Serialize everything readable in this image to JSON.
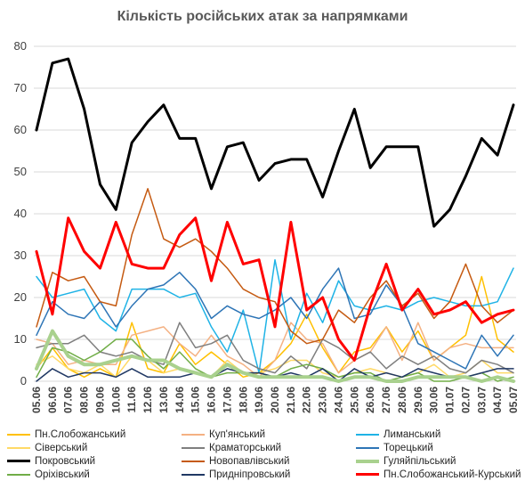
{
  "chart_data": {
    "type": "line",
    "title": "Кількість російських атак за напрямками",
    "xlabel": "",
    "ylabel": "",
    "ylim": [
      0,
      80
    ],
    "yticks": [
      0,
      10,
      20,
      30,
      40,
      50,
      60,
      70,
      80
    ],
    "grid": "horizontal",
    "legend_position": "bottom",
    "categories": [
      "05.06",
      "06.06",
      "07.06",
      "08.06",
      "09.06",
      "10.06",
      "11.06",
      "12.06",
      "13.06",
      "14.06",
      "15.06",
      "16.06",
      "17.06",
      "18.06",
      "19.06",
      "20.06",
      "21.06",
      "22.06",
      "23.06",
      "24.06",
      "25.06",
      "26.06",
      "27.06",
      "28.06",
      "29.06",
      "30.06",
      "01.07",
      "02.07",
      "03.07",
      "04.07",
      "05.07"
    ],
    "series": [
      {
        "name": "Пн.Слобожанський",
        "color": "#ffc000",
        "width": 1.5,
        "values": [
          3,
          8,
          3,
          1,
          3,
          1,
          14,
          3,
          2,
          9,
          4,
          7,
          4,
          1,
          2,
          5,
          9,
          16,
          8,
          2,
          7,
          8,
          13,
          7,
          12,
          5,
          8,
          11,
          25,
          10,
          7
        ]
      },
      {
        "name": "Куп'янський",
        "color": "#f4b183",
        "width": 1.5,
        "values": [
          10,
          9,
          4,
          5,
          4,
          4,
          11,
          12,
          13,
          9,
          6,
          11,
          6,
          4,
          1,
          5,
          14,
          10,
          9,
          2,
          5,
          7,
          13,
          5,
          14,
          5,
          8,
          9,
          8,
          8,
          8
        ]
      },
      {
        "name": "Лиманський",
        "color": "#1fb3e6",
        "width": 1.5,
        "values": [
          25,
          20,
          21,
          22,
          15,
          12,
          22,
          22,
          22,
          20,
          21,
          13,
          7,
          17,
          2,
          29,
          10,
          21,
          14,
          24,
          18,
          17,
          18,
          17,
          19,
          20,
          19,
          18,
          18,
          19,
          27
        ]
      },
      {
        "name": "Сіверський",
        "color": "#ffd966",
        "width": 1.5,
        "values": [
          4,
          6,
          3,
          2,
          4,
          1,
          6,
          5,
          2,
          3,
          2,
          1,
          5,
          2,
          2,
          3,
          5,
          5,
          2,
          1,
          2,
          3,
          2,
          1,
          2,
          4,
          1,
          2,
          5,
          2,
          2
        ]
      },
      {
        "name": "Краматорський",
        "color": "#7f7f7f",
        "width": 1.5,
        "values": [
          8,
          9,
          9,
          11,
          7,
          6,
          7,
          5,
          4,
          14,
          8,
          9,
          11,
          5,
          3,
          2,
          6,
          3,
          10,
          8,
          5,
          7,
          3,
          6,
          4,
          6,
          3,
          2,
          5,
          4,
          2
        ]
      },
      {
        "name": "Торецький",
        "color": "#2e75b6",
        "width": 1.5,
        "values": [
          11,
          19,
          16,
          15,
          19,
          13,
          18,
          22,
          23,
          26,
          22,
          15,
          18,
          16,
          15,
          17,
          20,
          15,
          22,
          27,
          15,
          16,
          23,
          18,
          9,
          7,
          5,
          3,
          11,
          6,
          11
        ]
      },
      {
        "name": "Покровський",
        "color": "#000000",
        "width": 3,
        "values": [
          60,
          76,
          77,
          65,
          47,
          41,
          57,
          62,
          66,
          58,
          58,
          46,
          56,
          57,
          48,
          52,
          53,
          53,
          44,
          55,
          65,
          51,
          56,
          56,
          56,
          37,
          41,
          49,
          58,
          54,
          66
        ]
      },
      {
        "name": "Новопавлівський",
        "color": "#c55a11",
        "width": 1.5,
        "values": [
          13,
          26,
          24,
          25,
          19,
          18,
          35,
          46,
          34,
          32,
          34,
          31,
          27,
          22,
          20,
          19,
          12,
          9,
          10,
          17,
          14,
          20,
          24,
          18,
          21,
          15,
          19,
          28,
          18,
          14,
          17
        ]
      },
      {
        "name": "Гуляйпільський",
        "color": "#a9d18e",
        "width": 4,
        "values": [
          3,
          12,
          6,
          4,
          4,
          5,
          6,
          5,
          5,
          3,
          2,
          1,
          4,
          2,
          1,
          1,
          1,
          1,
          1,
          0,
          1,
          1,
          0,
          0,
          1,
          1,
          1,
          1,
          0,
          1,
          0
        ]
      },
      {
        "name": "Оріхівський",
        "color": "#70ad47",
        "width": 1.5,
        "values": [
          1,
          8,
          7,
          5,
          7,
          10,
          10,
          6,
          3,
          7,
          3,
          1,
          2,
          2,
          2,
          1,
          3,
          4,
          3,
          1,
          2,
          2,
          0,
          1,
          2,
          0,
          0,
          1,
          2,
          0,
          1
        ]
      },
      {
        "name": "Придніпровський",
        "color": "#203864",
        "width": 1.5,
        "values": [
          0,
          3,
          1,
          2,
          2,
          1,
          3,
          1,
          1,
          1,
          2,
          1,
          3,
          2,
          2,
          1,
          2,
          1,
          3,
          0,
          3,
          1,
          2,
          1,
          3,
          2,
          1,
          1,
          2,
          3,
          3
        ]
      },
      {
        "name": "Пн.Слобожанський-Курський",
        "color": "#ff0000",
        "width": 3,
        "values": [
          31,
          16,
          39,
          31,
          27,
          38,
          28,
          27,
          27,
          35,
          39,
          24,
          38,
          28,
          29,
          13,
          38,
          17,
          20,
          10,
          5,
          18,
          28,
          17,
          22,
          16,
          17,
          19,
          14,
          16,
          17
        ]
      }
    ]
  }
}
